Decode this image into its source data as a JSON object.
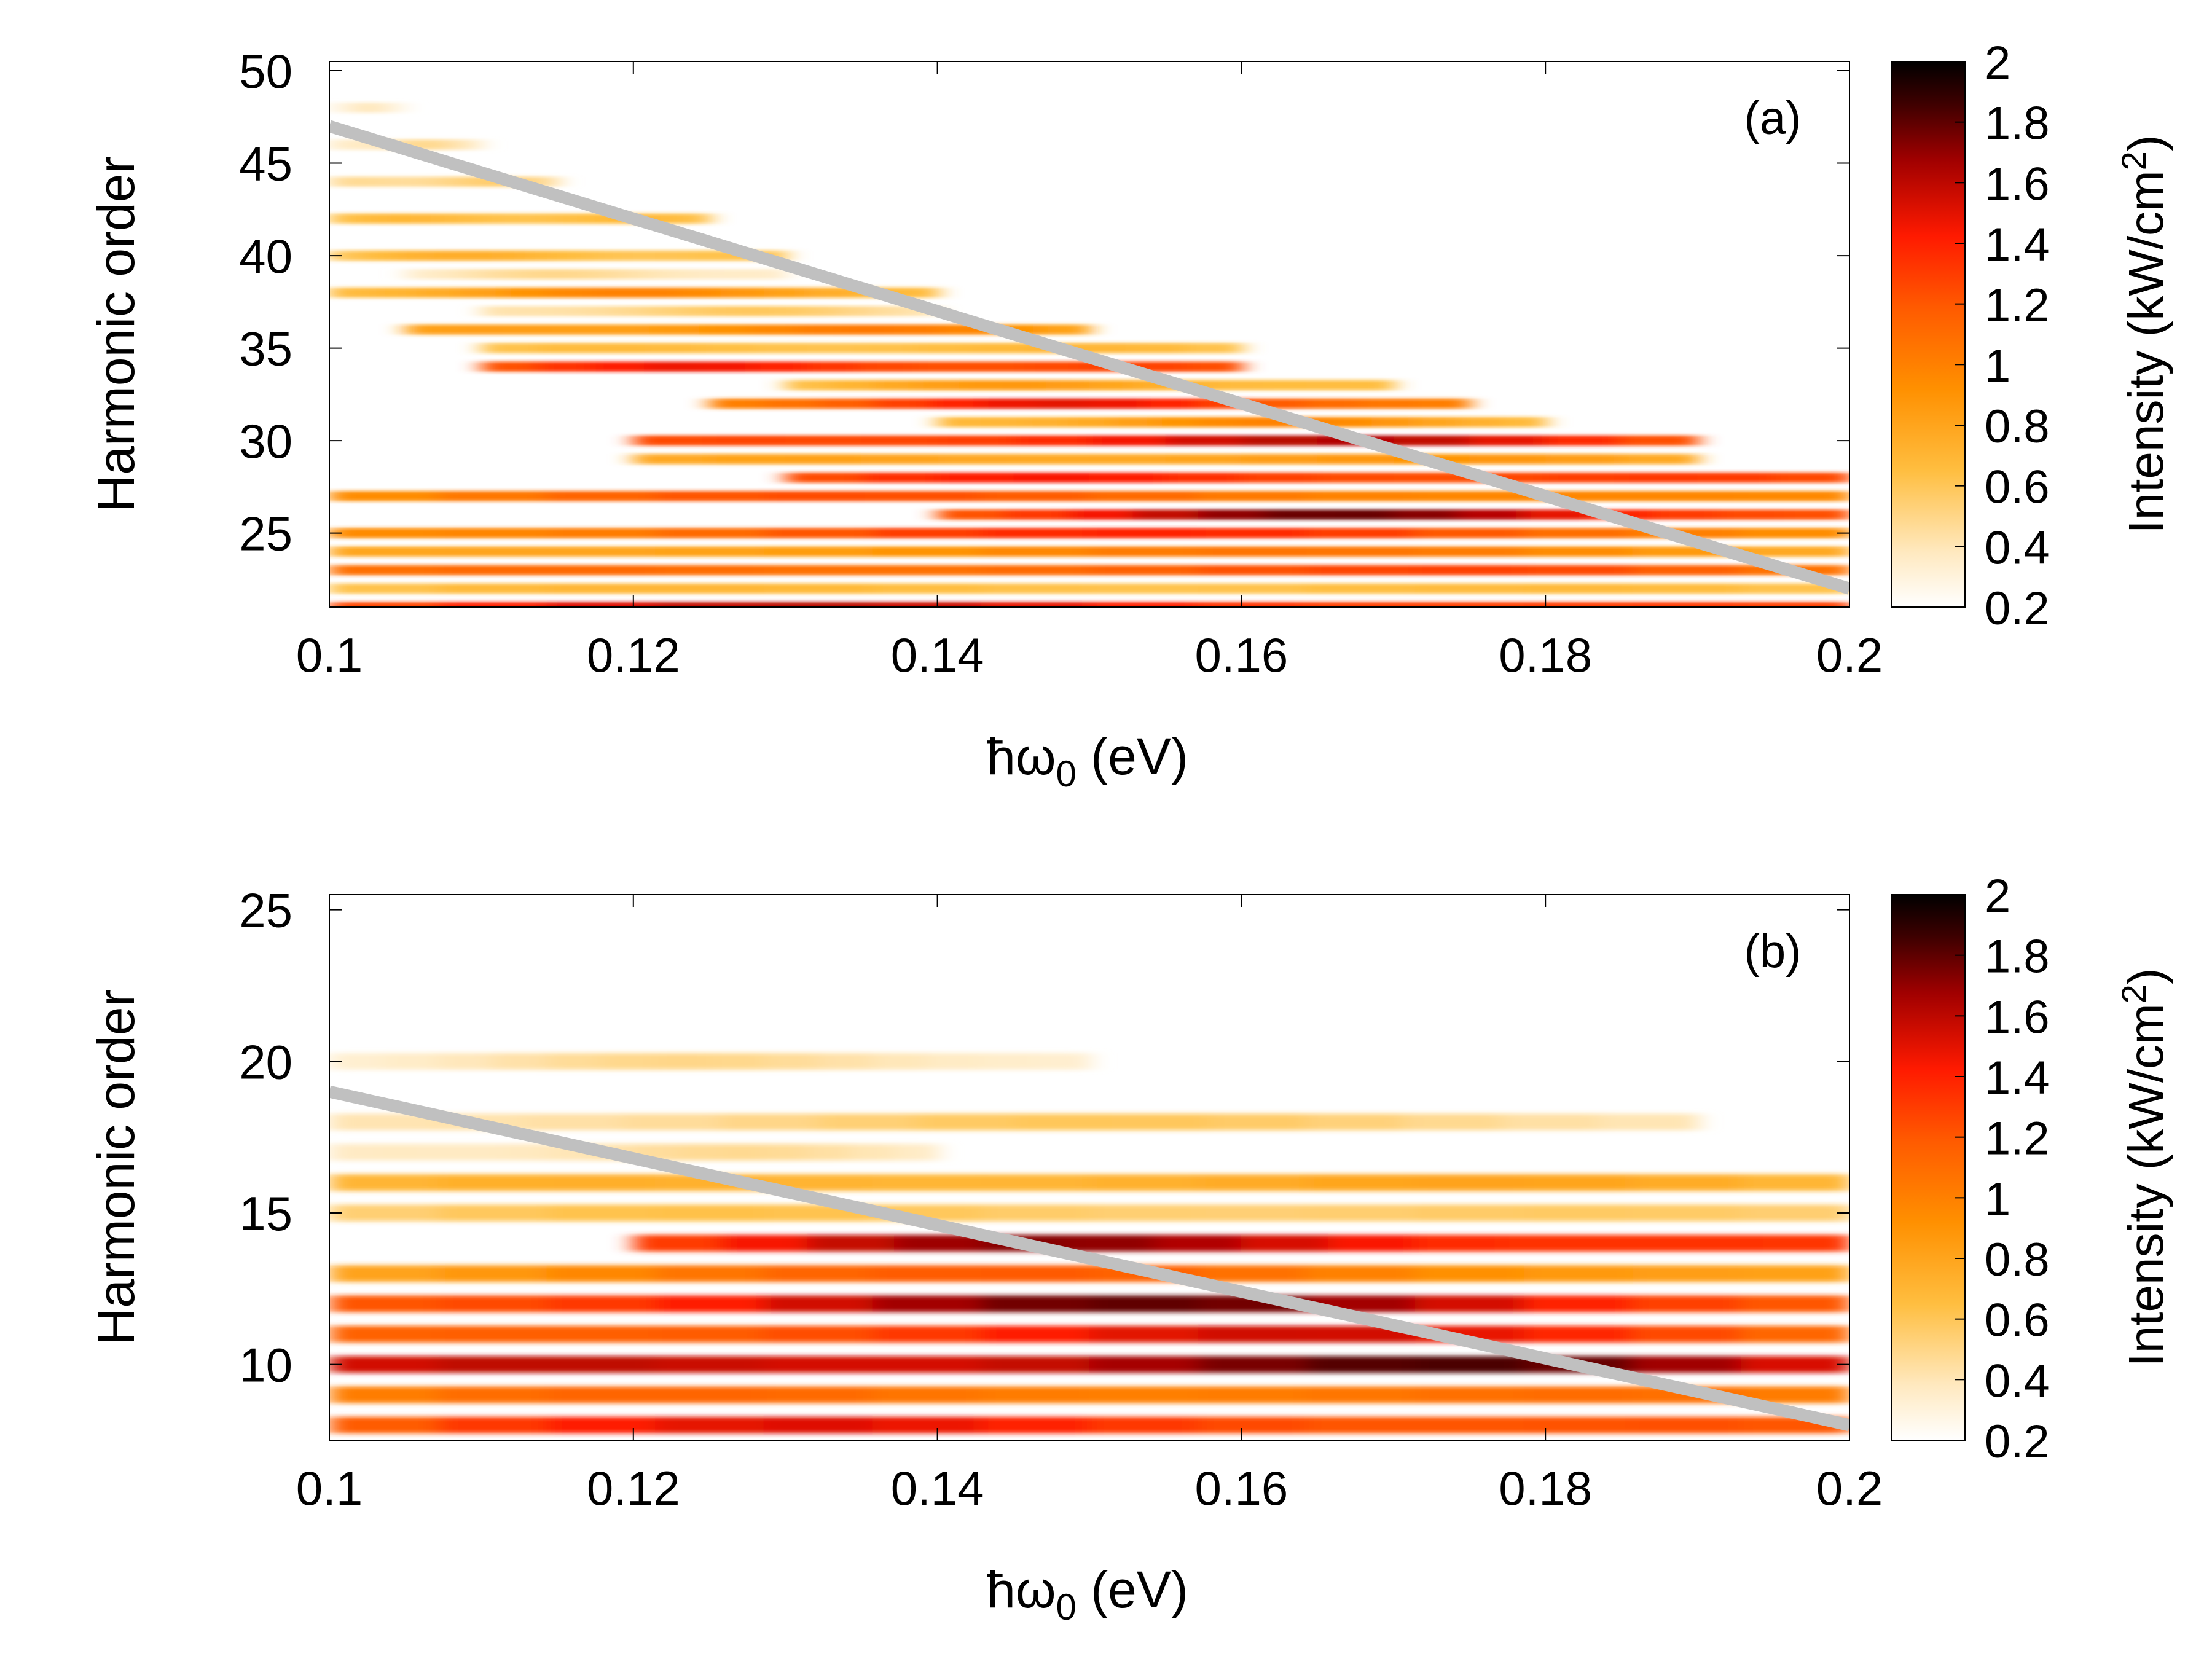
{
  "colors": {
    "cutoff_line": "#c0c0c0",
    "colormap": [
      "#ffffff",
      "#ffe4b0",
      "#ffb020",
      "#ff7000",
      "#ff2000",
      "#c00000",
      "#600000",
      "#000000"
    ]
  },
  "chart_data": [
    {
      "type": "heatmap",
      "panel_label": "(a)",
      "xlabel": "ħω",
      "xlabel_sub": "0",
      "xlabel_unit": " (eV)",
      "ylabel": "Harmonic order",
      "xlim": [
        0.1,
        0.2
      ],
      "ylim": [
        21,
        50.5
      ],
      "xticks": [
        "0.1",
        "0.12",
        "0.14",
        "0.16",
        "0.18",
        "0.2"
      ],
      "yticks": [
        "25",
        "30",
        "35",
        "40",
        "45",
        "50"
      ],
      "colorbar": {
        "label": "Intensity (kW/cm",
        "label_sup": "2",
        "label_end": ")",
        "range": [
          0.2,
          2
        ],
        "ticks": [
          "0.2",
          "0.4",
          "0.6",
          "0.8",
          "1",
          "1.2",
          "1.4",
          "1.6",
          "1.8",
          "2"
        ]
      },
      "cutoff_line": {
        "x": [
          0.1,
          0.2
        ],
        "y": [
          47,
          22
        ]
      },
      "bands": [
        {
          "h": 21,
          "x0": 0.1,
          "x1": 0.2,
          "peak": 1.7
        },
        {
          "h": 22,
          "x0": 0.1,
          "x1": 0.2,
          "peak": 0.8
        },
        {
          "h": 23,
          "x0": 0.1,
          "x1": 0.2,
          "peak": 1.4
        },
        {
          "h": 24,
          "x0": 0.1,
          "x1": 0.2,
          "peak": 1.1
        },
        {
          "h": 25,
          "x0": 0.1,
          "x1": 0.2,
          "peak": 1.4
        },
        {
          "h": 26,
          "x0": 0.14,
          "x1": 0.2,
          "peak": 1.8
        },
        {
          "h": 27,
          "x0": 0.1,
          "x1": 0.2,
          "peak": 1.3
        },
        {
          "h": 28,
          "x0": 0.13,
          "x1": 0.2,
          "peak": 1.6
        },
        {
          "h": 29,
          "x0": 0.12,
          "x1": 0.19,
          "peak": 1.0
        },
        {
          "h": 30,
          "x0": 0.12,
          "x1": 0.19,
          "peak": 1.7
        },
        {
          "h": 31,
          "x0": 0.14,
          "x1": 0.18,
          "peak": 1.0
        },
        {
          "h": 32,
          "x0": 0.125,
          "x1": 0.175,
          "peak": 1.5
        },
        {
          "h": 33,
          "x0": 0.13,
          "x1": 0.17,
          "peak": 0.9
        },
        {
          "h": 34,
          "x0": 0.11,
          "x1": 0.16,
          "peak": 1.6
        },
        {
          "h": 35,
          "x0": 0.11,
          "x1": 0.16,
          "peak": 0.8
        },
        {
          "h": 36,
          "x0": 0.105,
          "x1": 0.15,
          "peak": 1.1
        },
        {
          "h": 37,
          "x0": 0.11,
          "x1": 0.14,
          "peak": 0.6
        },
        {
          "h": 38,
          "x0": 0.1,
          "x1": 0.14,
          "peak": 1.0
        },
        {
          "h": 39,
          "x0": 0.105,
          "x1": 0.13,
          "peak": 0.5
        },
        {
          "h": 40,
          "x0": 0.1,
          "x1": 0.13,
          "peak": 0.8
        },
        {
          "h": 42,
          "x0": 0.1,
          "x1": 0.125,
          "peak": 0.8
        },
        {
          "h": 44,
          "x0": 0.1,
          "x1": 0.115,
          "peak": 0.6
        },
        {
          "h": 46,
          "x0": 0.1,
          "x1": 0.11,
          "peak": 0.5
        },
        {
          "h": 48,
          "x0": 0.1,
          "x1": 0.105,
          "peak": 0.4
        }
      ]
    },
    {
      "type": "heatmap",
      "panel_label": "(b)",
      "xlabel": "ħω",
      "xlabel_sub": "0",
      "xlabel_unit": " (eV)",
      "ylabel": "Harmonic order",
      "xlim": [
        0.1,
        0.2
      ],
      "ylim": [
        7.5,
        25.5
      ],
      "xticks": [
        "0.1",
        "0.12",
        "0.14",
        "0.16",
        "0.18",
        "0.2"
      ],
      "yticks": [
        "10",
        "15",
        "20",
        "25"
      ],
      "colorbar": {
        "label": "Intensity (kW/cm",
        "label_sup": "2",
        "label_end": ")",
        "range": [
          0.2,
          2
        ],
        "ticks": [
          "0.2",
          "0.4",
          "0.6",
          "0.8",
          "1",
          "1.2",
          "1.4",
          "1.6",
          "1.8",
          "2"
        ]
      },
      "cutoff_line": {
        "x": [
          0.1,
          0.2
        ],
        "y": [
          19,
          8
        ]
      },
      "bands": [
        {
          "h": 8,
          "x0": 0.1,
          "x1": 0.2,
          "peak": 1.6
        },
        {
          "h": 9,
          "x0": 0.1,
          "x1": 0.2,
          "peak": 1.3
        },
        {
          "h": 10,
          "x0": 0.1,
          "x1": 0.2,
          "peak": 2.0
        },
        {
          "h": 11,
          "x0": 0.1,
          "x1": 0.2,
          "peak": 1.6
        },
        {
          "h": 12,
          "x0": 0.1,
          "x1": 0.2,
          "peak": 1.8
        },
        {
          "h": 13,
          "x0": 0.1,
          "x1": 0.2,
          "peak": 1.2
        },
        {
          "h": 14,
          "x0": 0.12,
          "x1": 0.2,
          "peak": 1.8
        },
        {
          "h": 15,
          "x0": 0.1,
          "x1": 0.2,
          "peak": 0.7
        },
        {
          "h": 16,
          "x0": 0.1,
          "x1": 0.2,
          "peak": 0.9
        },
        {
          "h": 17,
          "x0": 0.1,
          "x1": 0.14,
          "peak": 0.5
        },
        {
          "h": 18,
          "x0": 0.1,
          "x1": 0.19,
          "peak": 0.6
        },
        {
          "h": 20,
          "x0": 0.1,
          "x1": 0.15,
          "peak": 0.5
        }
      ]
    }
  ]
}
